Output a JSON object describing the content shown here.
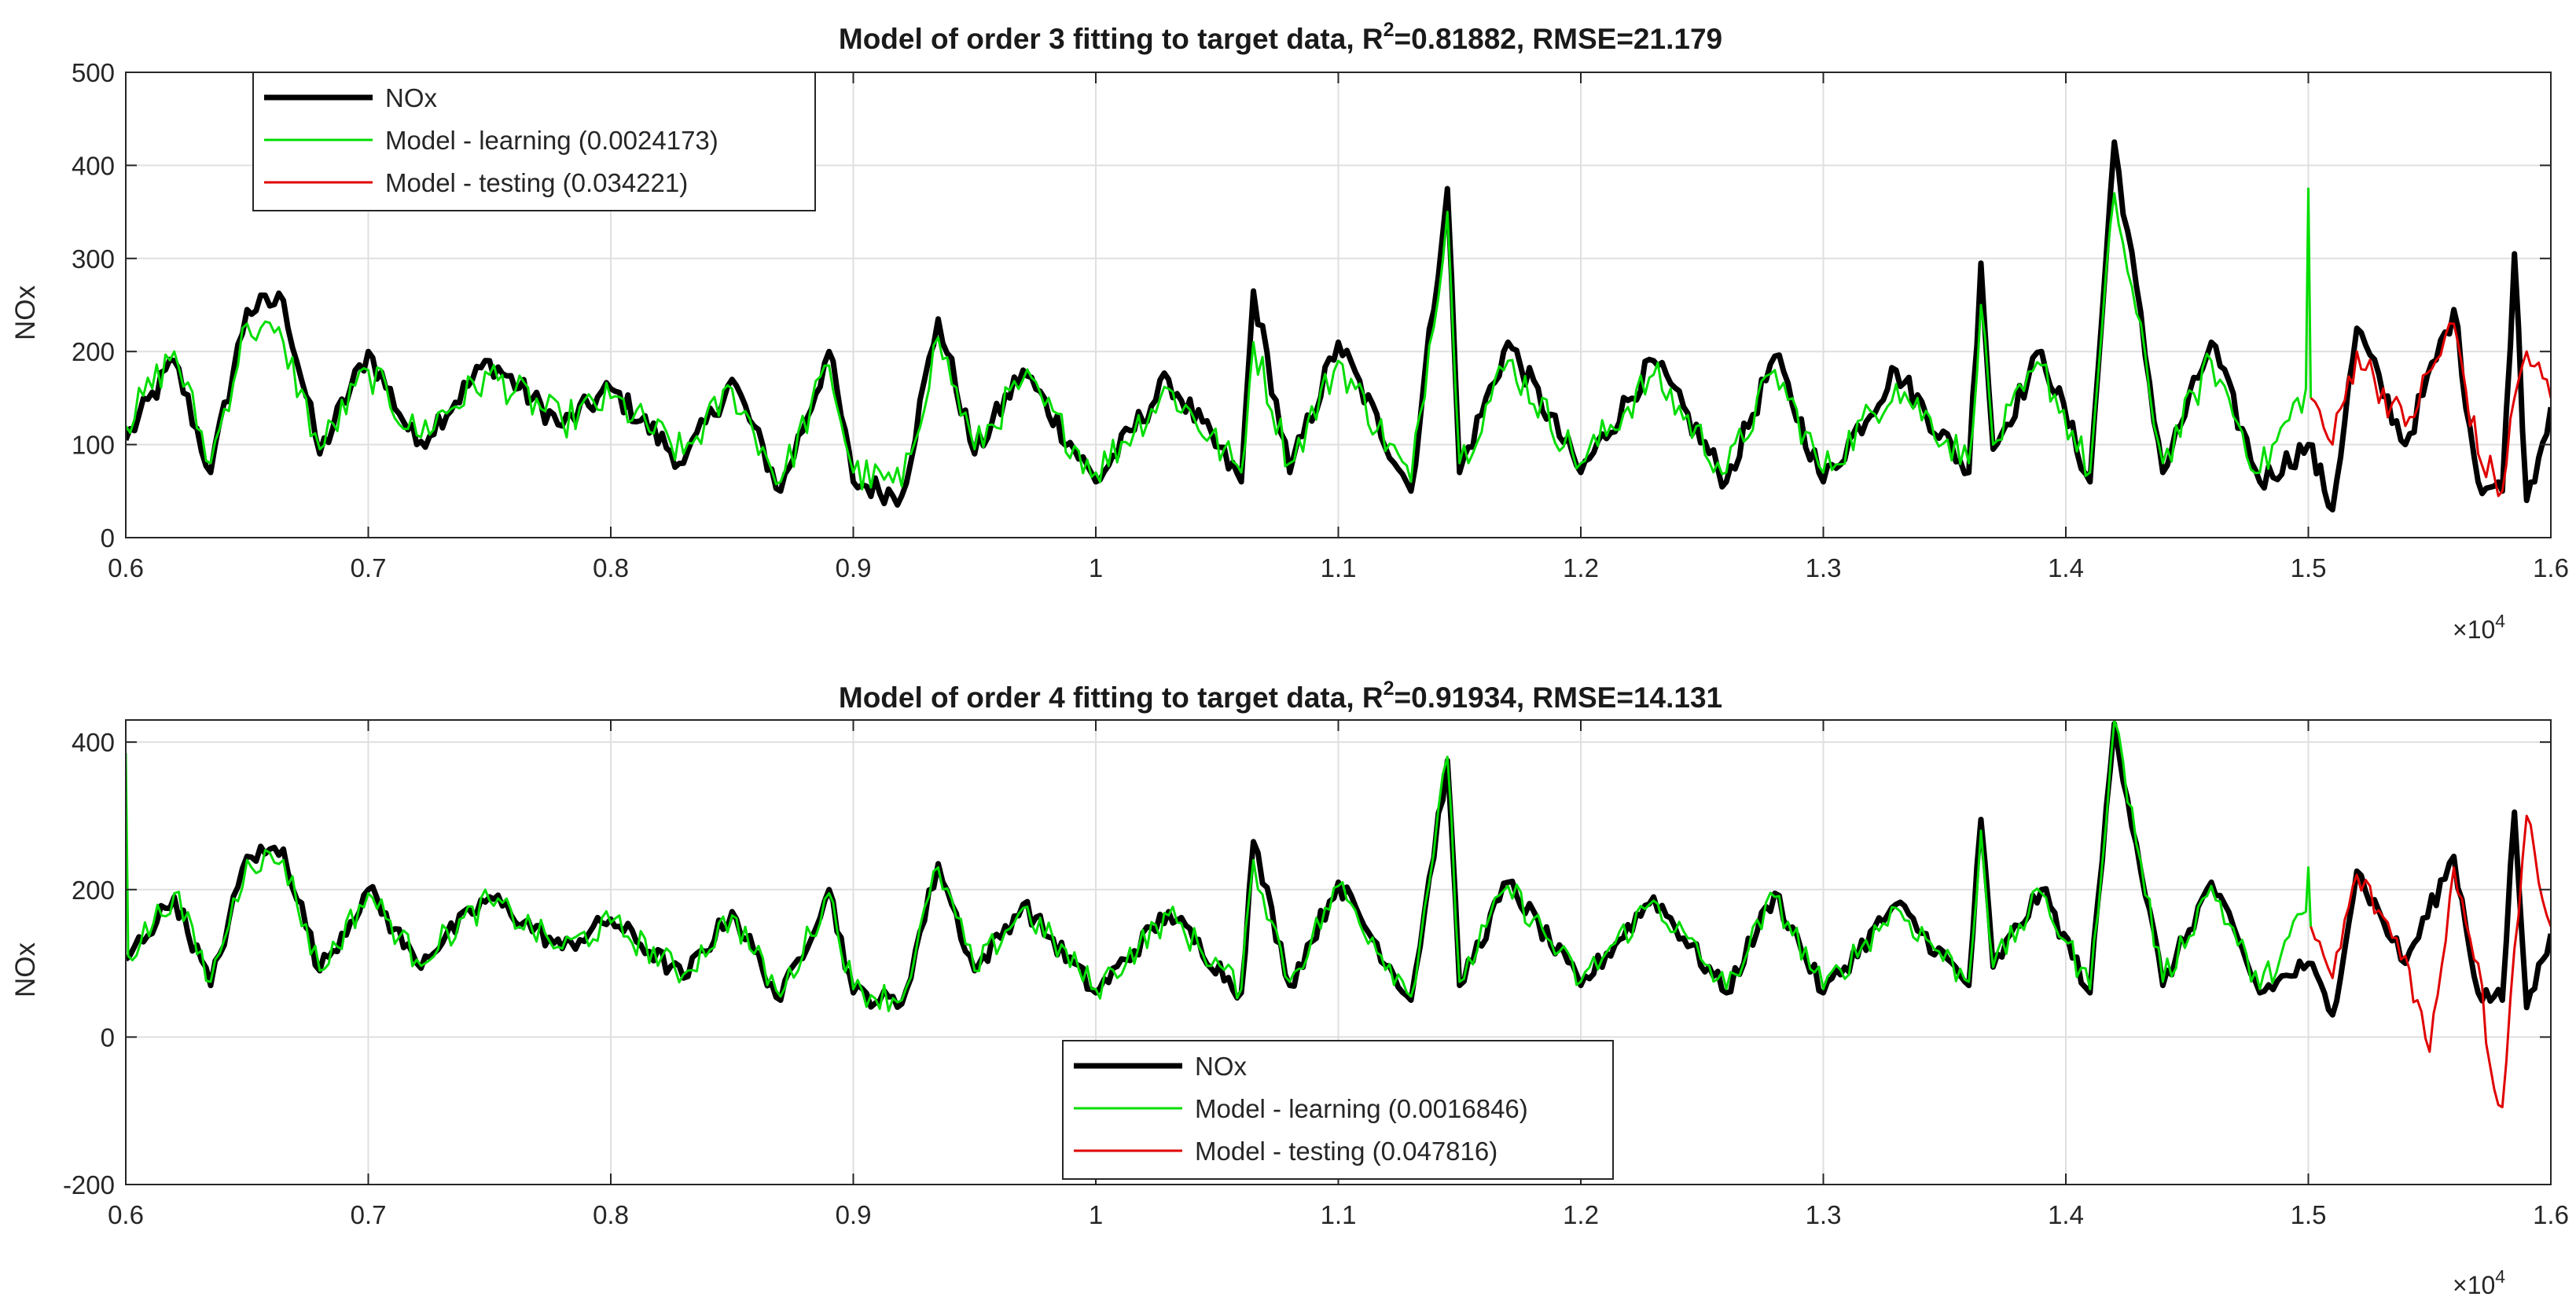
{
  "figure": {
    "background": "#ffffff"
  },
  "chart_data": [
    {
      "type": "line",
      "title_main": "Model of order 3 fitting to target data, R",
      "title_sup": "2",
      "title_rest": "=0.81882, RMSE=21.179",
      "ylabel": "NOx",
      "xlabel": "",
      "xlim": [
        0.6,
        1.6
      ],
      "ylim": [
        0,
        500
      ],
      "xticks": [
        0.6,
        0.7,
        0.8,
        0.9,
        1,
        1.1,
        1.2,
        1.3,
        1.4,
        1.5,
        1.6
      ],
      "xtick_labels": [
        "0.6",
        "0.7",
        "0.8",
        "0.9",
        "1",
        "1.1",
        "1.2",
        "1.3",
        "1.4",
        "1.5",
        "1.6"
      ],
      "yticks": [
        0,
        100,
        200,
        300,
        400,
        500
      ],
      "ytick_labels": [
        "0",
        "100",
        "200",
        "300",
        "400",
        "500"
      ],
      "x_exponent_base": "×10",
      "x_exponent_power": "4",
      "grid": true,
      "legend_position": "top-left",
      "legend": [
        {
          "label": "NOx",
          "color": "#000000"
        },
        {
          "label": "Model - learning (0.0024173)",
          "color": "#00dd00"
        },
        {
          "label": "Model - testing (0.034221)",
          "color": "#e00000"
        }
      ],
      "series": [
        {
          "name": "NOx",
          "color": "#000000",
          "x": [
            0.6,
            0.62,
            0.635,
            0.65,
            0.665,
            0.68,
            0.7,
            0.72,
            0.75,
            0.78,
            0.8,
            0.83,
            0.85,
            0.87,
            0.89,
            0.9,
            0.92,
            0.935,
            0.95,
            0.97,
            1.0,
            1.03,
            1.06,
            1.065,
            1.08,
            1.1,
            1.13,
            1.145,
            1.15,
            1.17,
            1.2,
            1.23,
            1.26,
            1.28,
            1.3,
            1.33,
            1.36,
            1.365,
            1.37,
            1.39,
            1.41,
            1.42,
            1.44,
            1.46,
            1.48,
            1.5,
            1.51,
            1.52,
            1.54,
            1.56,
            1.57,
            1.58,
            1.585,
            1.59,
            1.6
          ],
          "y": [
            105,
            190,
            70,
            245,
            255,
            90,
            200,
            100,
            190,
            120,
            160,
            80,
            170,
            50,
            200,
            60,
            45,
            235,
            90,
            180,
            60,
            170,
            60,
            265,
            70,
            210,
            50,
            375,
            70,
            210,
            70,
            190,
            60,
            195,
            60,
            180,
            70,
            295,
            95,
            200,
            60,
            425,
            70,
            210,
            60,
            100,
            30,
            225,
            100,
            245,
            60,
            50,
            305,
            40,
            140
          ]
        },
        {
          "name": "Model - learning",
          "color": "#00dd00",
          "x": [
            0.6,
            0.62,
            0.635,
            0.65,
            0.665,
            0.68,
            0.7,
            0.72,
            0.75,
            0.78,
            0.8,
            0.83,
            0.85,
            0.87,
            0.89,
            0.9,
            0.92,
            0.935,
            0.95,
            0.97,
            1.0,
            1.03,
            1.06,
            1.065,
            1.08,
            1.1,
            1.13,
            1.145,
            1.15,
            1.17,
            1.2,
            1.23,
            1.26,
            1.28,
            1.3,
            1.33,
            1.36,
            1.365,
            1.37,
            1.39,
            1.41,
            1.42,
            1.44,
            1.46,
            1.48,
            1.499,
            1.5,
            1.501
          ],
          "y": [
            120,
            200,
            80,
            230,
            210,
            95,
            180,
            110,
            175,
            125,
            150,
            90,
            160,
            60,
            185,
            70,
            55,
            215,
            95,
            170,
            70,
            160,
            70,
            210,
            80,
            190,
            60,
            350,
            80,
            190,
            80,
            175,
            70,
            180,
            70,
            165,
            80,
            250,
            100,
            185,
            70,
            370,
            80,
            190,
            70,
            160,
            375,
            150
          ]
        },
        {
          "name": "Model - testing",
          "color": "#e00000",
          "x": [
            1.501,
            1.51,
            1.52,
            1.54,
            1.56,
            1.57,
            1.58,
            1.585,
            1.59,
            1.6
          ],
          "y": [
            150,
            100,
            200,
            120,
            230,
            90,
            50,
            150,
            200,
            150
          ]
        }
      ]
    },
    {
      "type": "line",
      "title_main": "Model of order 4 fitting to target data, R",
      "title_sup": "2",
      "title_rest": "=0.91934, RMSE=14.131",
      "ylabel": "NOx",
      "xlabel": "",
      "xlim": [
        0.6,
        1.6
      ],
      "ylim": [
        -200,
        430
      ],
      "xticks": [
        0.6,
        0.7,
        0.8,
        0.9,
        1,
        1.1,
        1.2,
        1.3,
        1.4,
        1.5,
        1.6
      ],
      "xtick_labels": [
        "0.6",
        "0.7",
        "0.8",
        "0.9",
        "1",
        "1.1",
        "1.2",
        "1.3",
        "1.4",
        "1.5",
        "1.6"
      ],
      "yticks": [
        -200,
        0,
        200,
        400
      ],
      "ytick_labels": [
        "-200",
        "0",
        "200",
        "400"
      ],
      "x_exponent_base": "×10",
      "x_exponent_power": "4",
      "grid": true,
      "legend_position": "bottom-center",
      "legend": [
        {
          "label": "NOx",
          "color": "#000000"
        },
        {
          "label": "Model - learning (0.0016846)",
          "color": "#00dd00"
        },
        {
          "label": "Model - testing (0.047816)",
          "color": "#e00000"
        }
      ],
      "series": [
        {
          "name": "NOx",
          "color": "#000000",
          "x": [
            0.6,
            0.62,
            0.635,
            0.65,
            0.665,
            0.68,
            0.7,
            0.72,
            0.75,
            0.78,
            0.8,
            0.83,
            0.85,
            0.87,
            0.89,
            0.9,
            0.92,
            0.935,
            0.95,
            0.97,
            1.0,
            1.03,
            1.06,
            1.065,
            1.08,
            1.1,
            1.13,
            1.145,
            1.15,
            1.17,
            1.2,
            1.23,
            1.26,
            1.28,
            1.3,
            1.33,
            1.36,
            1.365,
            1.37,
            1.39,
            1.41,
            1.42,
            1.44,
            1.46,
            1.48,
            1.5,
            1.51,
            1.52,
            1.54,
            1.56,
            1.57,
            1.58,
            1.585,
            1.59,
            1.6
          ],
          "y": [
            105,
            190,
            70,
            245,
            255,
            90,
            200,
            100,
            190,
            120,
            160,
            80,
            170,
            50,
            200,
            60,
            45,
            235,
            90,
            180,
            60,
            170,
            60,
            265,
            70,
            210,
            50,
            375,
            70,
            210,
            70,
            190,
            60,
            195,
            60,
            180,
            70,
            295,
            95,
            200,
            60,
            425,
            70,
            210,
            60,
            100,
            30,
            225,
            100,
            245,
            60,
            50,
            305,
            40,
            140
          ]
        },
        {
          "name": "Model - learning",
          "color": "#00dd00",
          "x": [
            0.6,
            0.601,
            0.62,
            0.635,
            0.65,
            0.665,
            0.68,
            0.7,
            0.72,
            0.75,
            0.78,
            0.8,
            0.83,
            0.85,
            0.87,
            0.89,
            0.9,
            0.92,
            0.935,
            0.95,
            0.97,
            1.0,
            1.03,
            1.06,
            1.065,
            1.08,
            1.1,
            1.13,
            1.145,
            1.15,
            1.17,
            1.2,
            1.23,
            1.26,
            1.28,
            1.3,
            1.33,
            1.36,
            1.365,
            1.37,
            1.39,
            1.41,
            1.42,
            1.44,
            1.46,
            1.48,
            1.499,
            1.5,
            1.501
          ],
          "y": [
            385,
            110,
            195,
            75,
            240,
            240,
            90,
            195,
            105,
            185,
            120,
            155,
            85,
            165,
            55,
            195,
            65,
            50,
            230,
            90,
            175,
            65,
            165,
            65,
            240,
            75,
            205,
            55,
            380,
            75,
            205,
            75,
            185,
            65,
            190,
            65,
            175,
            75,
            280,
            95,
            195,
            65,
            430,
            75,
            205,
            65,
            170,
            230,
            150
          ]
        },
        {
          "name": "Model - testing",
          "color": "#e00000",
          "x": [
            1.501,
            1.51,
            1.52,
            1.54,
            1.55,
            1.56,
            1.57,
            1.575,
            1.58,
            1.585,
            1.59,
            1.6
          ],
          "y": [
            150,
            80,
            220,
            110,
            -20,
            230,
            100,
            -40,
            -95,
            120,
            300,
            150
          ]
        }
      ]
    }
  ]
}
